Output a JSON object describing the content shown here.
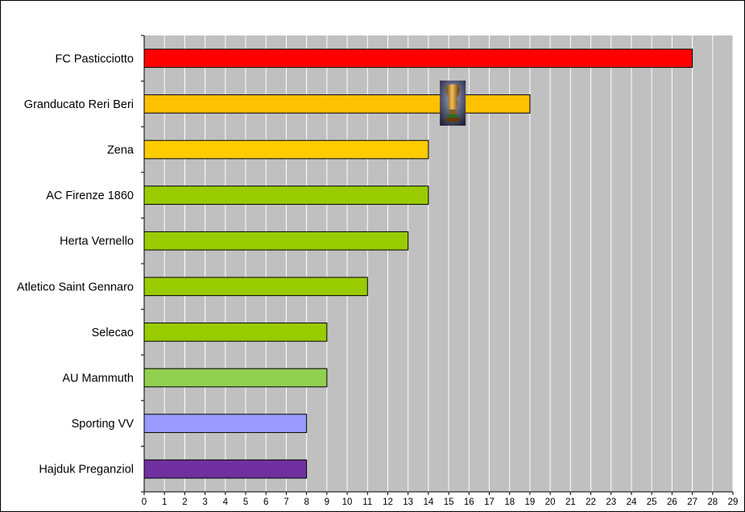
{
  "chart_data": {
    "type": "bar",
    "orientation": "horizontal",
    "categories": [
      "FC Pasticciotto",
      "Granducato Reri Beri",
      "Zena",
      "AC Firenze 1860",
      "Herta Vernello",
      "Atletico Saint Gennaro",
      "Selecao",
      "AU Mammuth",
      "Sporting VV",
      "Hajduk Preganziol"
    ],
    "values": [
      27,
      19,
      14,
      14,
      13,
      11,
      9,
      9,
      8,
      8
    ],
    "bar_colors": [
      "#ff0000",
      "#ffc000",
      "#ffcc00",
      "#99cc00",
      "#99cc00",
      "#99cc00",
      "#99cc00",
      "#92d050",
      "#9999ff",
      "#7030a0"
    ],
    "xlim": [
      0,
      29
    ],
    "xticks": [
      0,
      1,
      2,
      3,
      4,
      5,
      6,
      7,
      8,
      9,
      10,
      11,
      12,
      13,
      14,
      15,
      16,
      17,
      18,
      19,
      20,
      21,
      22,
      23,
      24,
      25,
      26,
      27,
      28,
      29
    ],
    "grid": true,
    "plot_background": "#c0c0c0",
    "gridline_color": "#ffffff",
    "title": "",
    "xlabel": "",
    "ylabel": "",
    "annotations": [
      {
        "icon": "trophy-icon",
        "category": "Granducato Reri Beri",
        "x_value": 15.2
      }
    ]
  }
}
